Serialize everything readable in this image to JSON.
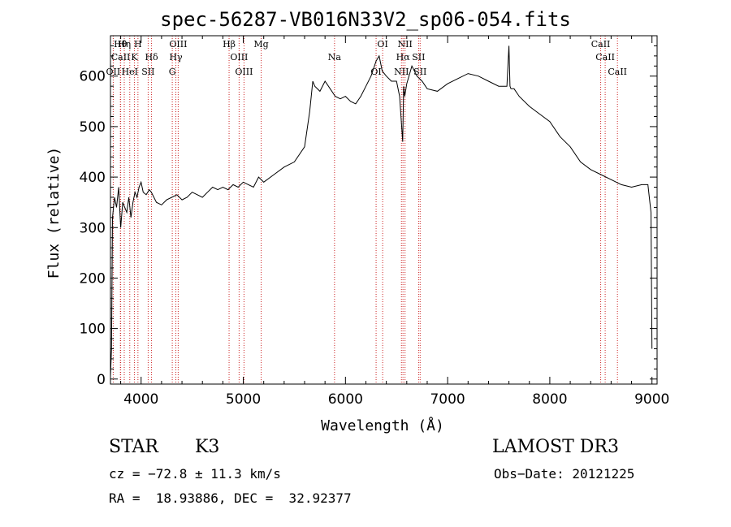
{
  "chart_data": {
    "type": "line",
    "title": "spec-56287-VB016N33V2_sp06-054.fits",
    "xlabel": "Wavelength (Å)",
    "ylabel": "Flux (relative)",
    "xlim": [
      3700,
      9050
    ],
    "ylim": [
      -10,
      680
    ],
    "xticks": [
      4000,
      5000,
      6000,
      7000,
      8000,
      9000
    ],
    "yticks": [
      0,
      100,
      200,
      300,
      400,
      500,
      600
    ],
    "grid": false,
    "series": [
      {
        "x": [
          3700,
          3710,
          3720,
          3740,
          3760,
          3780,
          3800,
          3820,
          3840,
          3860,
          3880,
          3900,
          3920,
          3940,
          3960,
          3980,
          4000,
          4020,
          4050,
          4080,
          4100,
          4150,
          4200,
          4250,
          4300,
          4350,
          4400,
          4450,
          4500,
          4550,
          4600,
          4650,
          4700,
          4750,
          4800,
          4850,
          4900,
          4950,
          5000,
          5050,
          5100,
          5150,
          5200,
          5300,
          5400,
          5500,
          5600,
          5650,
          5680,
          5700,
          5750,
          5800,
          5850,
          5900,
          5950,
          6000,
          6050,
          6100,
          6150,
          6200,
          6250,
          6300,
          6330,
          6360,
          6400,
          6450,
          6500,
          6530,
          6560,
          6570,
          6580,
          6600,
          6650,
          6700,
          6750,
          6800,
          6900,
          7000,
          7100,
          7200,
          7300,
          7400,
          7500,
          7580,
          7600,
          7610,
          7620,
          7650,
          7700,
          7800,
          7900,
          8000,
          8100,
          8200,
          8300,
          8400,
          8500,
          8600,
          8700,
          8800,
          8900,
          8960,
          8990,
          9000
        ],
        "values": [
          5,
          60,
          320,
          360,
          340,
          380,
          300,
          350,
          340,
          330,
          360,
          320,
          350,
          370,
          360,
          380,
          390,
          370,
          365,
          375,
          370,
          350,
          345,
          355,
          360,
          365,
          355,
          360,
          370,
          365,
          360,
          370,
          380,
          375,
          380,
          375,
          385,
          380,
          390,
          385,
          380,
          400,
          390,
          405,
          420,
          430,
          460,
          530,
          590,
          580,
          570,
          590,
          575,
          560,
          555,
          560,
          550,
          545,
          560,
          580,
          600,
          630,
          640,
          610,
          600,
          590,
          590,
          560,
          470,
          580,
          560,
          585,
          620,
          600,
          590,
          575,
          570,
          585,
          595,
          605,
          600,
          590,
          580,
          580,
          660,
          580,
          575,
          575,
          560,
          540,
          525,
          510,
          480,
          460,
          430,
          415,
          405,
          395,
          385,
          380,
          385,
          385,
          330,
          60
        ]
      }
    ],
    "lines": [
      {
        "label": "Hθ",
        "x": 3797
      },
      {
        "label": "CaII",
        "x": 3800
      },
      {
        "label": "OII",
        "x": 3727
      },
      {
        "label": "Hη",
        "x": 3835
      },
      {
        "label": "K",
        "x": 3934
      },
      {
        "label": "HeI",
        "x": 3889
      },
      {
        "label": "H",
        "x": 3969
      },
      {
        "label": "Hδ",
        "x": 4102
      },
      {
        "label": "SII",
        "x": 4069
      },
      {
        "label": "OIII",
        "x": 4363
      },
      {
        "label": "Hγ",
        "x": 4340
      },
      {
        "label": "G",
        "x": 4305
      },
      {
        "label": "Hβ",
        "x": 4861
      },
      {
        "label": "OIII",
        "x": 4959
      },
      {
        "label": "OIII",
        "x": 5007
      },
      {
        "label": "Mg",
        "x": 5175
      },
      {
        "label": "Na",
        "x": 5893
      },
      {
        "label": "OI",
        "x": 6300
      },
      {
        "label": "OI",
        "x": 6364
      },
      {
        "label": "Hα",
        "x": 6563
      },
      {
        "label": "NII",
        "x": 6548
      },
      {
        "label": "NII",
        "x": 6583
      },
      {
        "label": "SII",
        "x": 6716
      },
      {
        "label": "SII",
        "x": 6731
      },
      {
        "label": "CaII",
        "x": 8498
      },
      {
        "label": "CaII",
        "x": 8542
      },
      {
        "label": "CaII",
        "x": 8662
      }
    ]
  },
  "info": {
    "class_left": "STAR",
    "subclass": "K3",
    "survey": "LAMOST DR3",
    "cz": "cz = −72.8 ± 11.3 km/s",
    "obs_date": "Obs−Date: 20121225",
    "radec": "RA =  18.93886, DEC =  32.92377"
  },
  "colors": {
    "spectrum": "#000000",
    "marker_lines": "#cc2222",
    "axes": "#000000"
  }
}
